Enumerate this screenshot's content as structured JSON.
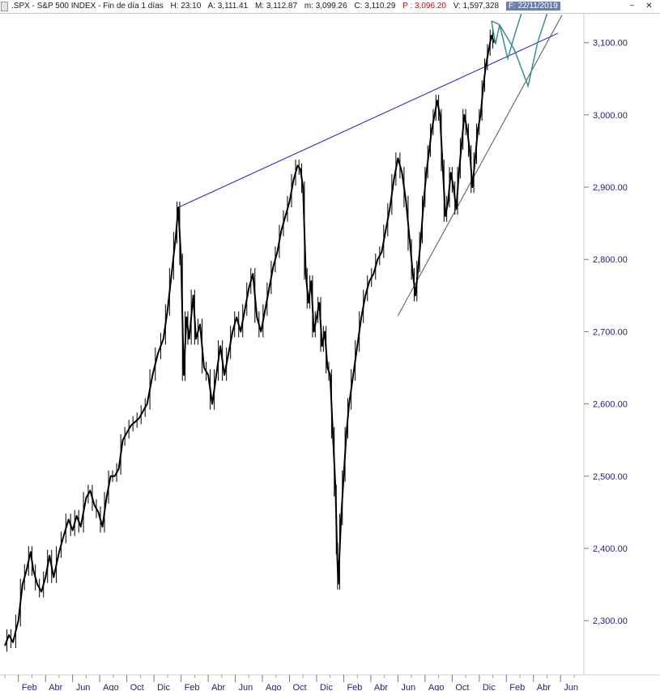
{
  "header": {
    "symbol": ".SPX - S&P 500 INDEX - Fin de día 1 días",
    "hour": "H: 23:10",
    "open": "A: 3,111.41",
    "high": "M: 3,112.87",
    "low": "m: 3,099.26",
    "close": "C: 3,110.29",
    "prev": "P : 3,096.20",
    "volume": "V: 1,597,328",
    "date": "F: 22/11/2019",
    "minimize_icon": "minimize-icon",
    "close_icon": "close-icon"
  },
  "colors": {
    "price": "#000000",
    "upper_trendline": "#1f1fbf",
    "lower_trendline": "#555555",
    "projection": "#3e8c93",
    "axis_text": "#1f1f7a",
    "prev_close": "#d40000"
  },
  "chart_data": {
    "type": "line",
    "title": "",
    "xlabel": "",
    "ylabel": "",
    "ylim": [
      2225,
      3140
    ],
    "y_ticks": [
      "2,300.00",
      "2,400.00",
      "2,500.00",
      "2,600.00",
      "2,700.00",
      "2,800.00",
      "2,900.00",
      "3,000.00",
      "3,100.00"
    ],
    "y_tick_values": [
      2300,
      2400,
      2500,
      2600,
      2700,
      2800,
      2900,
      3000,
      3100
    ],
    "x_ticks": [
      "Feb",
      "Abr",
      "Jun",
      "Ago",
      "Oct",
      "Dic",
      "Feb",
      "Abr",
      "Jun",
      "Ago",
      "Oct",
      "Dic",
      "Feb",
      "Abr",
      "Jun",
      "Ago",
      "Oct",
      "Dic",
      "Feb",
      "Abr",
      "Jun"
    ],
    "x_tick_months": [
      1,
      3,
      5,
      7,
      9,
      11,
      13,
      15,
      17,
      19,
      21,
      23,
      25,
      27,
      29,
      31,
      33,
      35,
      37,
      39,
      41
    ],
    "xlim_months": [
      0,
      42.3
    ],
    "series": [
      {
        "values": [
          [
            0.0,
            2265
          ],
          [
            0.3,
            2280
          ],
          [
            0.6,
            2270
          ],
          [
            1.0,
            2300
          ],
          [
            1.3,
            2350
          ],
          [
            1.6,
            2370
          ],
          [
            1.9,
            2395
          ],
          [
            2.1,
            2370
          ],
          [
            2.4,
            2350
          ],
          [
            2.7,
            2340
          ],
          [
            3.0,
            2360
          ],
          [
            3.3,
            2390
          ],
          [
            3.6,
            2360
          ],
          [
            4.0,
            2395
          ],
          [
            4.3,
            2415
          ],
          [
            4.7,
            2440
          ],
          [
            5.0,
            2425
          ],
          [
            5.3,
            2445
          ],
          [
            5.6,
            2430
          ],
          [
            6.0,
            2470
          ],
          [
            6.3,
            2480
          ],
          [
            6.6,
            2460
          ],
          [
            6.9,
            2450
          ],
          [
            7.2,
            2430
          ],
          [
            7.5,
            2470
          ],
          [
            7.8,
            2500
          ],
          [
            8.1,
            2500
          ],
          [
            8.4,
            2510
          ],
          [
            8.7,
            2550
          ],
          [
            9.0,
            2560
          ],
          [
            9.3,
            2570
          ],
          [
            9.6,
            2575
          ],
          [
            9.9,
            2580
          ],
          [
            10.2,
            2590
          ],
          [
            10.5,
            2600
          ],
          [
            10.9,
            2640
          ],
          [
            11.3,
            2670
          ],
          [
            11.7,
            2690
          ],
          [
            12.0,
            2730
          ],
          [
            12.3,
            2780
          ],
          [
            12.6,
            2830
          ],
          [
            12.8,
            2872
          ],
          [
            13.0,
            2800
          ],
          [
            13.2,
            2640
          ],
          [
            13.4,
            2720
          ],
          [
            13.6,
            2690
          ],
          [
            13.9,
            2750
          ],
          [
            14.1,
            2690
          ],
          [
            14.4,
            2710
          ],
          [
            14.7,
            2650
          ],
          [
            15.0,
            2640
          ],
          [
            15.3,
            2600
          ],
          [
            15.6,
            2640
          ],
          [
            15.9,
            2680
          ],
          [
            16.2,
            2640
          ],
          [
            16.5,
            2670
          ],
          [
            16.8,
            2700
          ],
          [
            17.1,
            2720
          ],
          [
            17.4,
            2700
          ],
          [
            17.7,
            2730
          ],
          [
            18.0,
            2760
          ],
          [
            18.3,
            2780
          ],
          [
            18.6,
            2720
          ],
          [
            18.9,
            2700
          ],
          [
            19.2,
            2730
          ],
          [
            19.5,
            2760
          ],
          [
            19.8,
            2790
          ],
          [
            20.1,
            2810
          ],
          [
            20.4,
            2840
          ],
          [
            20.7,
            2860
          ],
          [
            21.0,
            2880
          ],
          [
            21.3,
            2910
          ],
          [
            21.6,
            2930
          ],
          [
            21.8,
            2925
          ],
          [
            22.0,
            2900
          ],
          [
            22.2,
            2780
          ],
          [
            22.4,
            2740
          ],
          [
            22.6,
            2770
          ],
          [
            22.8,
            2700
          ],
          [
            23.0,
            2720
          ],
          [
            23.2,
            2740
          ],
          [
            23.4,
            2680
          ],
          [
            23.6,
            2700
          ],
          [
            23.8,
            2650
          ],
          [
            24.0,
            2640
          ],
          [
            24.2,
            2560
          ],
          [
            24.4,
            2480
          ],
          [
            24.5,
            2400
          ],
          [
            24.6,
            2351
          ],
          [
            24.8,
            2440
          ],
          [
            25.0,
            2500
          ],
          [
            25.2,
            2560
          ],
          [
            25.4,
            2600
          ],
          [
            25.7,
            2640
          ],
          [
            26.0,
            2680
          ],
          [
            26.3,
            2720
          ],
          [
            26.6,
            2750
          ],
          [
            26.9,
            2770
          ],
          [
            27.2,
            2780
          ],
          [
            27.5,
            2800
          ],
          [
            27.8,
            2810
          ],
          [
            28.1,
            2840
          ],
          [
            28.4,
            2870
          ],
          [
            28.7,
            2910
          ],
          [
            29.0,
            2940
          ],
          [
            29.3,
            2920
          ],
          [
            29.6,
            2880
          ],
          [
            29.9,
            2820
          ],
          [
            30.1,
            2780
          ],
          [
            30.3,
            2750
          ],
          [
            30.5,
            2790
          ],
          [
            30.7,
            2830
          ],
          [
            30.9,
            2880
          ],
          [
            31.1,
            2920
          ],
          [
            31.3,
            2950
          ],
          [
            31.5,
            2980
          ],
          [
            31.7,
            3000
          ],
          [
            31.9,
            3020
          ],
          [
            32.1,
            3000
          ],
          [
            32.3,
            2930
          ],
          [
            32.5,
            2860
          ],
          [
            32.7,
            2880
          ],
          [
            32.9,
            2920
          ],
          [
            33.1,
            2900
          ],
          [
            33.3,
            2870
          ],
          [
            33.5,
            2920
          ],
          [
            33.7,
            2960
          ],
          [
            33.9,
            3000
          ],
          [
            34.1,
            2980
          ],
          [
            34.3,
            2950
          ],
          [
            34.5,
            2900
          ],
          [
            34.7,
            2940
          ],
          [
            34.9,
            2980
          ],
          [
            35.1,
            3000
          ],
          [
            35.3,
            3040
          ],
          [
            35.5,
            3070
          ],
          [
            35.7,
            3090
          ],
          [
            35.9,
            3110
          ],
          [
            36.1,
            3100
          ]
        ]
      }
    ],
    "trendlines": [
      {
        "role": "resistance",
        "points": [
          [
            12.8,
            2872
          ],
          [
            40.8,
            3113
          ]
        ]
      },
      {
        "role": "support",
        "points": [
          [
            29.0,
            2722
          ],
          [
            41.1,
            3138
          ]
        ]
      }
    ],
    "projections": [
      [
        [
          35.9,
          3130
        ],
        [
          36.2,
          3098
        ],
        [
          36.5,
          3125
        ],
        [
          37.1,
          3078
        ],
        [
          37.6,
          3110
        ],
        [
          38.1,
          3140
        ]
      ],
      [
        [
          35.9,
          3130
        ],
        [
          36.5,
          3125
        ],
        [
          37.6,
          3090
        ],
        [
          38.6,
          3040
        ],
        [
          39.3,
          3100
        ],
        [
          40.0,
          3140
        ]
      ]
    ]
  }
}
